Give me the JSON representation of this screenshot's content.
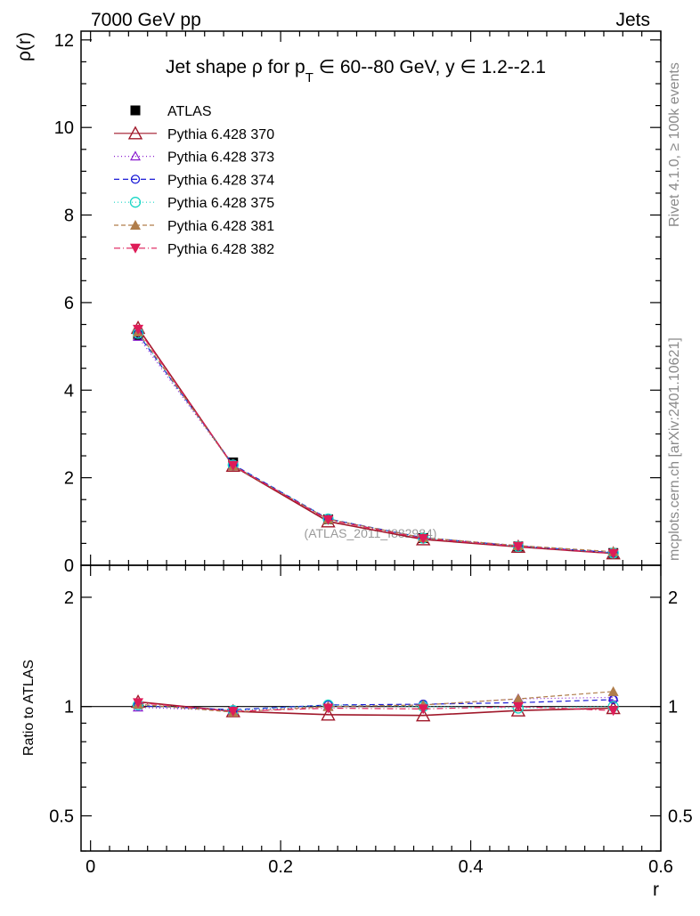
{
  "header": {
    "left": "7000 GeV pp",
    "right": "Jets"
  },
  "side": {
    "rivet": "Rivet 4.1.0, ≥ 100k events",
    "mcplots": "mcplots.cern.ch [arXiv:2401.10621]"
  },
  "chart_data": [
    {
      "type": "line",
      "title": "Jet shape ρ for p_T ∈ 60--80 GeV, y ∈ 1.2--2.1",
      "title_main": "Jet shape ρ for p",
      "title_sub": "T",
      "title_rest": " ∈ 60--80 GeV, y ∈ 1.2--2.1",
      "ylabel": "ρ(r)",
      "xlabel": "",
      "xlim": [
        -0.01,
        0.6
      ],
      "ylim": [
        0,
        12.2
      ],
      "yticks": [
        0,
        2,
        4,
        6,
        8,
        10,
        12
      ],
      "ytick_labels": [
        "0",
        "2",
        "4",
        "6",
        "8",
        "10",
        "12"
      ],
      "watermark": "(ATLAS_2011_I882984)",
      "x": [
        0.05,
        0.15,
        0.25,
        0.35,
        0.45,
        0.55
      ],
      "series": [
        {
          "name": "ATLAS",
          "color": "#000000",
          "marker": "square",
          "dash": "none",
          "values": [
            5.25,
            2.35,
            1.05,
            0.62,
            0.43,
            0.28
          ]
        },
        {
          "name": "Pythia 6.428 370",
          "color": "#a0182a",
          "marker": "triangle-open",
          "dash": "solid",
          "values": [
            5.42,
            2.27,
            1.0,
            0.59,
            0.42,
            0.27
          ]
        },
        {
          "name": "Pythia 6.428 373",
          "color": "#8b1fd0",
          "marker": "triangle-open-small",
          "dash": "1,3",
          "values": [
            5.22,
            2.28,
            1.05,
            0.63,
            0.45,
            0.29
          ]
        },
        {
          "name": "Pythia 6.428 374",
          "color": "#1a1ad6",
          "marker": "circle-open",
          "dash": "6,4",
          "values": [
            5.28,
            2.3,
            1.06,
            0.63,
            0.44,
            0.29
          ]
        },
        {
          "name": "Pythia 6.428 375",
          "color": "#18d6c6",
          "marker": "circle-open-large",
          "dash": "1,3",
          "values": [
            5.3,
            2.29,
            1.06,
            0.62,
            0.43,
            0.28
          ]
        },
        {
          "name": "Pythia 6.428 381",
          "color": "#b07d4a",
          "marker": "triangle-filled",
          "dash": "5,3",
          "values": [
            5.33,
            2.27,
            1.05,
            0.63,
            0.45,
            0.31
          ]
        },
        {
          "name": "Pythia 6.428 382",
          "color": "#de1c58",
          "marker": "triangle-down-filled",
          "dash": "7,3,1,3",
          "values": [
            5.39,
            2.28,
            1.04,
            0.61,
            0.43,
            0.27
          ]
        }
      ]
    },
    {
      "type": "line",
      "title": "",
      "ylabel": "Ratio to ATLAS",
      "xlabel": "r",
      "xlim": [
        -0.01,
        0.6
      ],
      "ylim": [
        0.4,
        2.45
      ],
      "yscale": "log",
      "yticks": [
        0.5,
        1,
        2
      ],
      "ytick_labels": [
        "0.5",
        "1",
        "2"
      ],
      "xticks": [
        0,
        0.2,
        0.4,
        0.6
      ],
      "xtick_labels": [
        "0",
        "0.2",
        "0.4",
        "0.6"
      ],
      "x": [
        0.05,
        0.15,
        0.25,
        0.35,
        0.45,
        0.55
      ],
      "series": [
        {
          "name": "Pythia 6.428 370",
          "color": "#a0182a",
          "marker": "triangle-open",
          "dash": "solid",
          "values": [
            1.03,
            0.97,
            0.95,
            0.945,
            0.975,
            0.99
          ]
        },
        {
          "name": "Pythia 6.428 373",
          "color": "#8b1fd0",
          "marker": "triangle-open-small",
          "dash": "1,3",
          "values": [
            0.995,
            0.975,
            1.0,
            1.01,
            1.05,
            1.06
          ]
        },
        {
          "name": "Pythia 6.428 374",
          "color": "#1a1ad6",
          "marker": "circle-open",
          "dash": "6,4",
          "values": [
            1.005,
            0.98,
            1.01,
            1.015,
            1.025,
            1.045
          ]
        },
        {
          "name": "Pythia 6.428 375",
          "color": "#18d6c6",
          "marker": "circle-open-large",
          "dash": "1,3",
          "values": [
            1.01,
            0.975,
            1.01,
            1.0,
            0.99,
            1.0
          ]
        },
        {
          "name": "Pythia 6.428 381",
          "color": "#b07d4a",
          "marker": "triangle-filled",
          "dash": "5,3",
          "values": [
            1.015,
            0.965,
            1.0,
            1.01,
            1.05,
            1.1
          ]
        },
        {
          "name": "Pythia 6.428 382",
          "color": "#de1c58",
          "marker": "triangle-down-filled",
          "dash": "7,3,1,3",
          "values": [
            1.025,
            0.97,
            0.99,
            0.985,
            1.0,
            0.975
          ]
        }
      ]
    }
  ]
}
